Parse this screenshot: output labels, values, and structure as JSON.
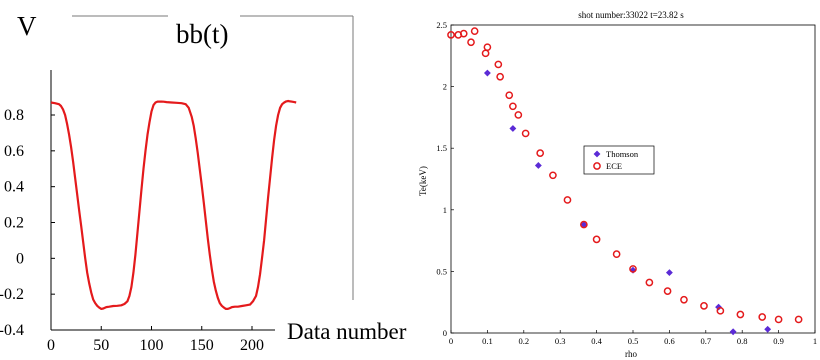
{
  "chart_data": [
    {
      "type": "line",
      "title": "bb(t)",
      "ylabel": "V",
      "xlabel": "Data number",
      "xlim": [
        0,
        220
      ],
      "ylim": [
        -0.4,
        0.95
      ],
      "xticks": [
        0,
        50,
        100,
        150,
        200
      ],
      "yticks": [
        -0.4,
        -0.2,
        0,
        0.2,
        0.4,
        0.6,
        0.8
      ],
      "xtick_labels": [
        "0",
        "50",
        "100",
        "150",
        "200"
      ],
      "ytick_labels": [
        "-0.4",
        "-0.2",
        "0",
        "0.2",
        "0.4",
        "0.6",
        "0.8"
      ],
      "grid": false,
      "series": [
        {
          "color": "#e41a1c",
          "x": [
            0,
            4,
            8,
            10,
            12,
            14,
            16,
            18,
            20,
            22,
            24,
            26,
            28,
            30,
            32,
            34,
            36,
            38,
            40,
            42,
            44,
            46,
            48,
            50,
            52,
            55,
            58,
            62,
            66,
            70,
            73,
            76,
            78,
            80,
            82,
            84,
            86,
            88,
            90,
            92,
            94,
            96,
            98,
            100,
            102,
            104,
            106,
            108,
            110,
            112,
            115,
            120,
            125,
            130,
            134,
            137,
            140,
            142,
            144,
            146,
            148,
            150,
            152,
            154,
            156,
            158,
            160,
            162,
            164,
            166,
            168,
            170,
            172,
            174,
            176,
            178,
            180,
            183,
            186,
            190,
            194,
            198,
            201,
            204,
            206,
            208,
            210,
            212,
            214,
            216,
            218,
            220,
            222,
            224,
            226,
            228,
            230,
            232,
            234,
            236,
            238,
            240,
            242,
            244
          ],
          "y": [
            0.87,
            0.866,
            0.86,
            0.85,
            0.83,
            0.8,
            0.75,
            0.69,
            0.62,
            0.54,
            0.45,
            0.36,
            0.27,
            0.18,
            0.09,
            0.0,
            -0.08,
            -0.14,
            -0.19,
            -0.23,
            -0.25,
            -0.265,
            -0.275,
            -0.282,
            -0.28,
            -0.272,
            -0.27,
            -0.266,
            -0.265,
            -0.262,
            -0.255,
            -0.24,
            -0.21,
            -0.16,
            -0.08,
            0.02,
            0.14,
            0.26,
            0.38,
            0.5,
            0.6,
            0.69,
            0.76,
            0.82,
            0.855,
            0.87,
            0.875,
            0.875,
            0.875,
            0.874,
            0.872,
            0.87,
            0.868,
            0.866,
            0.86,
            0.84,
            0.79,
            0.74,
            0.67,
            0.59,
            0.5,
            0.41,
            0.31,
            0.21,
            0.11,
            0.02,
            -0.06,
            -0.13,
            -0.18,
            -0.22,
            -0.25,
            -0.265,
            -0.275,
            -0.282,
            -0.282,
            -0.278,
            -0.272,
            -0.27,
            -0.27,
            -0.266,
            -0.262,
            -0.258,
            -0.24,
            -0.21,
            -0.16,
            -0.09,
            0.0,
            0.1,
            0.22,
            0.34,
            0.45,
            0.56,
            0.66,
            0.74,
            0.8,
            0.84,
            0.86,
            0.87,
            0.876,
            0.878,
            0.876,
            0.874,
            0.872,
            0.87
          ]
        }
      ]
    },
    {
      "type": "scatter",
      "title": "shot number:33022 t=23.82 s",
      "xlabel": "rho",
      "ylabel": "Te(keV)",
      "xlim": [
        0,
        1
      ],
      "ylim": [
        0,
        2.5
      ],
      "xticks": [
        0,
        0.1,
        0.2,
        0.3,
        0.4,
        0.5,
        0.6,
        0.7,
        0.8,
        0.9,
        1
      ],
      "yticks": [
        0,
        0.5,
        1,
        1.5,
        2,
        2.5
      ],
      "xtick_labels": [
        "0",
        "0.1",
        "0.2",
        "0.3",
        "0.4",
        "0.5",
        "0.6",
        "0.7",
        "0.8",
        "0.9",
        "1"
      ],
      "ytick_labels": [
        "0",
        "0.5",
        "1",
        "1.5",
        "2",
        "2.5"
      ],
      "grid": false,
      "legend": "center-left",
      "series": [
        {
          "name": "Thomson",
          "marker": "filled-diamond",
          "color": "#5b2bd6",
          "points": [
            [
              0.1,
              2.11
            ],
            [
              0.17,
              1.66
            ],
            [
              0.24,
              1.36
            ],
            [
              0.365,
              0.88
            ],
            [
              0.5,
              0.51
            ],
            [
              0.6,
              0.49
            ],
            [
              0.735,
              0.21
            ],
            [
              0.775,
              0.01
            ],
            [
              0.87,
              0.03
            ]
          ]
        },
        {
          "name": "ECE",
          "marker": "open-circle",
          "color": "#e41a1c",
          "points": [
            [
              0.0,
              2.42
            ],
            [
              0.02,
              2.42
            ],
            [
              0.035,
              2.43
            ],
            [
              0.055,
              2.36
            ],
            [
              0.065,
              2.45
            ],
            [
              0.095,
              2.27
            ],
            [
              0.1,
              2.32
            ],
            [
              0.13,
              2.18
            ],
            [
              0.135,
              2.08
            ],
            [
              0.16,
              1.93
            ],
            [
              0.17,
              1.84
            ],
            [
              0.185,
              1.77
            ],
            [
              0.205,
              1.62
            ],
            [
              0.245,
              1.46
            ],
            [
              0.28,
              1.28
            ],
            [
              0.32,
              1.08
            ],
            [
              0.365,
              0.88
            ],
            [
              0.4,
              0.76
            ],
            [
              0.455,
              0.64
            ],
            [
              0.5,
              0.52
            ],
            [
              0.545,
              0.41
            ],
            [
              0.595,
              0.34
            ],
            [
              0.64,
              0.27
            ],
            [
              0.695,
              0.22
            ],
            [
              0.74,
              0.18
            ],
            [
              0.795,
              0.15
            ],
            [
              0.855,
              0.13
            ],
            [
              0.9,
              0.11
            ],
            [
              0.955,
              0.11
            ]
          ]
        }
      ]
    }
  ]
}
